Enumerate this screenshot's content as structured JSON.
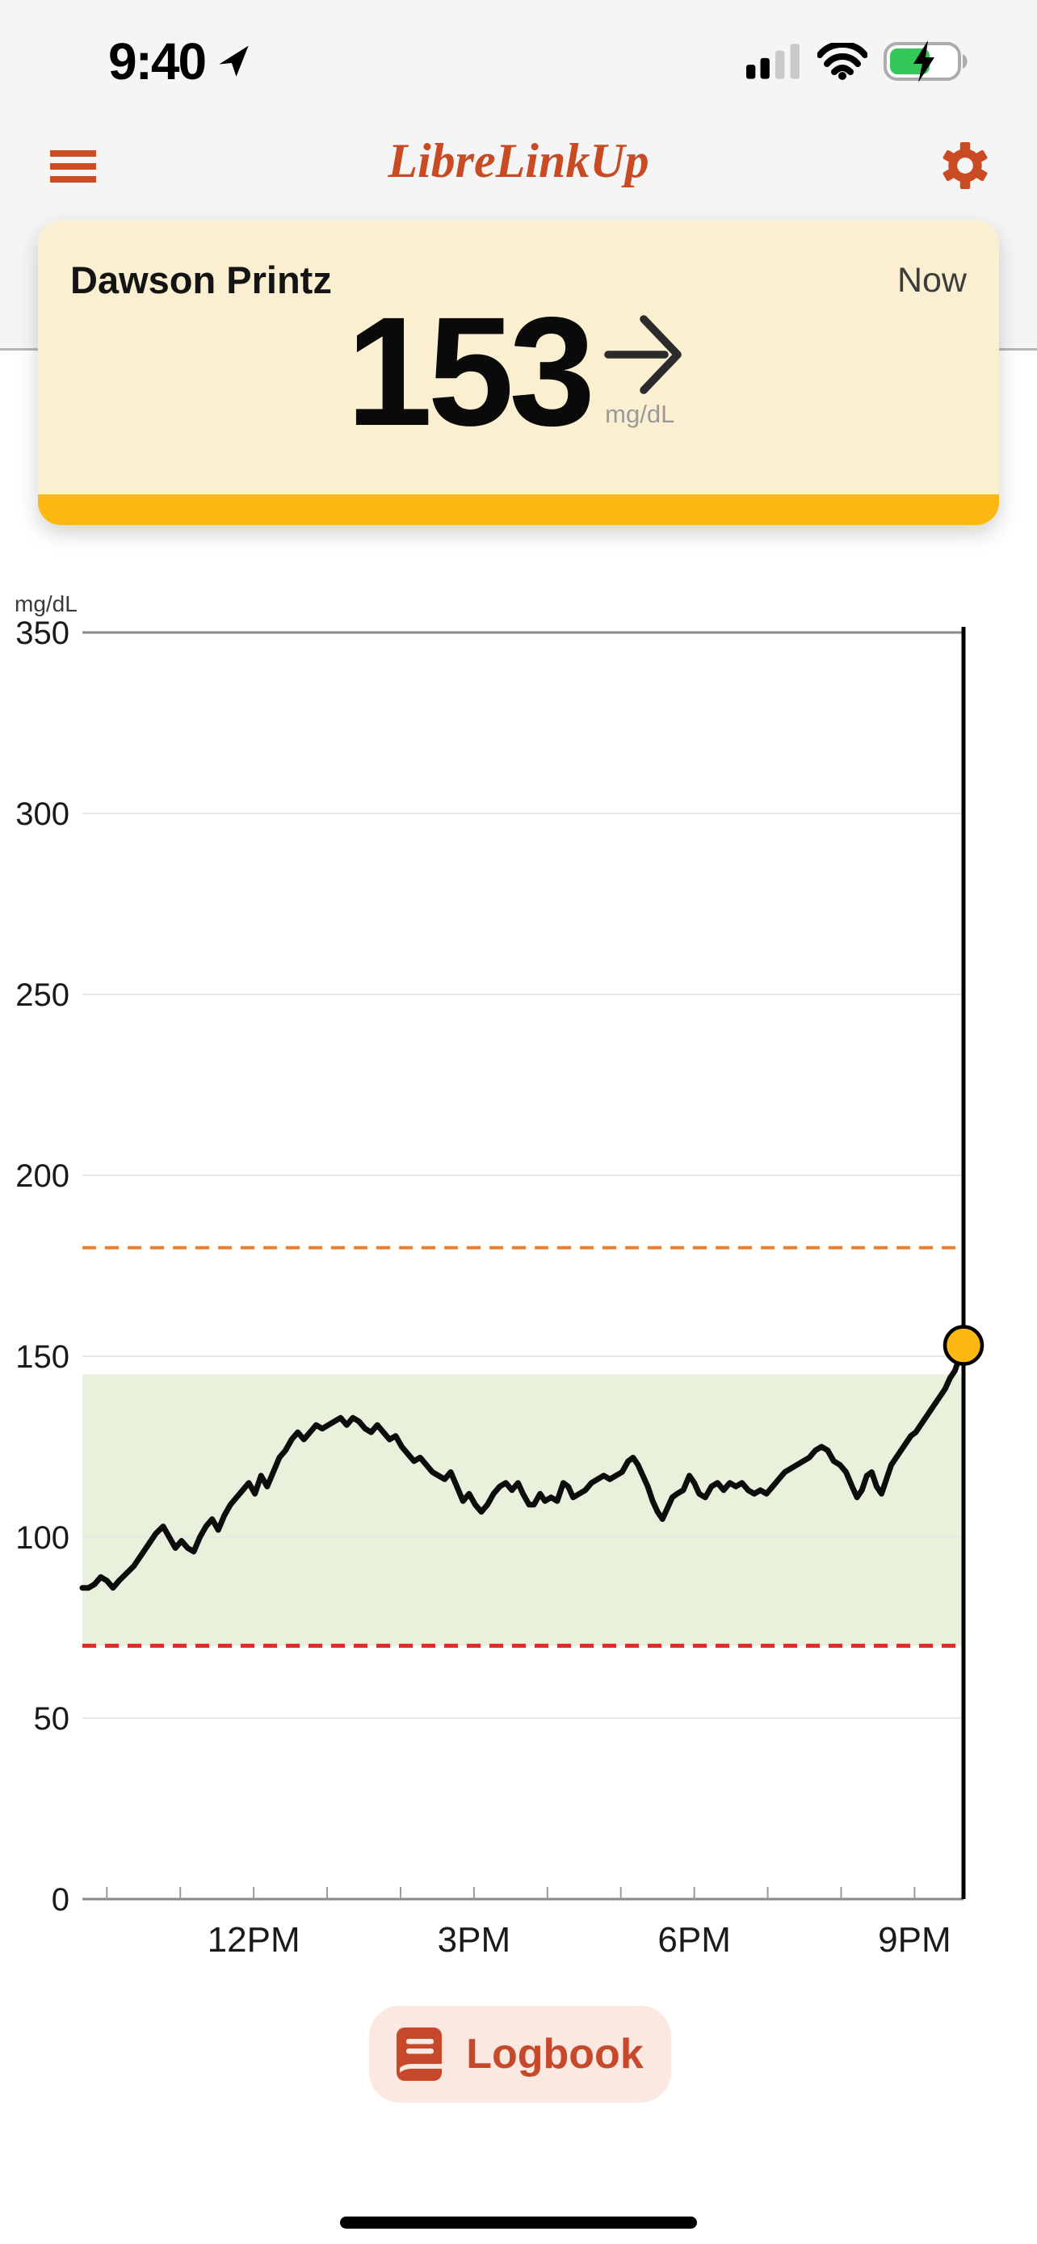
{
  "status_bar": {
    "time": "9:40",
    "location_icon": "location-arrow",
    "cellular": {
      "bars_active": 2,
      "bars_total": 4
    },
    "wifi": "full",
    "battery": {
      "level": 0.6,
      "charging": true,
      "green": "#34C759"
    }
  },
  "header": {
    "title": "LibreLinkUp",
    "menu_icon": "hamburger",
    "settings_icon": "gear",
    "accent": "#C94B24"
  },
  "patient_card": {
    "name": "Dawson Printz",
    "timestamp": "Now",
    "reading": "153",
    "unit": "mg/dL",
    "trend": "steady-right-arrow",
    "bg_color": "#FBEFD1",
    "bar_color": "#FDB813"
  },
  "logbook": {
    "label": "Logbook",
    "icon": "book"
  },
  "chart_data": {
    "type": "line",
    "ylabel": "mg/dL",
    "ylim": [
      0,
      350
    ],
    "y_ticks": [
      0,
      50,
      100,
      150,
      200,
      250,
      300,
      350
    ],
    "x_window": {
      "start": "9:40AM",
      "end": "9:40PM",
      "minutes": 720
    },
    "x_labels": [
      {
        "t": 140,
        "label": "12PM"
      },
      {
        "t": 320,
        "label": "3PM"
      },
      {
        "t": 500,
        "label": "6PM"
      },
      {
        "t": 680,
        "label": "9PM"
      }
    ],
    "x_first_tick_t": 20,
    "x_tick_interval_min": 60,
    "grid": "horizontal",
    "high_threshold": {
      "value": 180,
      "color": "#E87E2D",
      "style": "dashed"
    },
    "low_threshold": {
      "value": 70,
      "color": "#E0292B",
      "style": "dashed"
    },
    "target_range": {
      "low": 70,
      "high": 145,
      "fill": "#E8F1DB"
    },
    "current": {
      "t": 720,
      "value": 153,
      "marker_color": "#FDB813",
      "line_color": "#000000"
    },
    "line_color": "#0D0D0D",
    "series": [
      [
        0,
        86
      ],
      [
        5,
        86
      ],
      [
        10,
        87
      ],
      [
        15,
        89
      ],
      [
        20,
        88
      ],
      [
        25,
        86
      ],
      [
        30,
        88
      ],
      [
        36,
        90
      ],
      [
        42,
        92
      ],
      [
        48,
        95
      ],
      [
        54,
        98
      ],
      [
        60,
        101
      ],
      [
        66,
        103
      ],
      [
        71,
        100
      ],
      [
        76,
        97
      ],
      [
        81,
        99
      ],
      [
        86,
        97
      ],
      [
        91,
        96
      ],
      [
        96,
        100
      ],
      [
        101,
        103
      ],
      [
        106,
        105
      ],
      [
        111,
        102
      ],
      [
        116,
        106
      ],
      [
        121,
        109
      ],
      [
        126,
        111
      ],
      [
        131,
        113
      ],
      [
        136,
        115
      ],
      [
        141,
        112
      ],
      [
        146,
        117
      ],
      [
        151,
        114
      ],
      [
        156,
        118
      ],
      [
        161,
        122
      ],
      [
        166,
        124
      ],
      [
        171,
        127
      ],
      [
        176,
        129
      ],
      [
        181,
        127
      ],
      [
        186,
        129
      ],
      [
        191,
        131
      ],
      [
        196,
        130
      ],
      [
        201,
        131
      ],
      [
        206,
        132
      ],
      [
        211,
        133
      ],
      [
        216,
        131
      ],
      [
        221,
        133
      ],
      [
        226,
        132
      ],
      [
        231,
        130
      ],
      [
        236,
        129
      ],
      [
        241,
        131
      ],
      [
        246,
        129
      ],
      [
        251,
        127
      ],
      [
        256,
        128
      ],
      [
        261,
        125
      ],
      [
        266,
        123
      ],
      [
        271,
        121
      ],
      [
        276,
        122
      ],
      [
        281,
        120
      ],
      [
        286,
        118
      ],
      [
        291,
        117
      ],
      [
        296,
        116
      ],
      [
        301,
        118
      ],
      [
        306,
        114
      ],
      [
        311,
        110
      ],
      [
        316,
        112
      ],
      [
        321,
        109
      ],
      [
        326,
        107
      ],
      [
        331,
        109
      ],
      [
        336,
        112
      ],
      [
        341,
        114
      ],
      [
        346,
        115
      ],
      [
        351,
        113
      ],
      [
        356,
        115
      ],
      [
        360,
        112
      ],
      [
        365,
        109
      ],
      [
        369,
        109
      ],
      [
        374,
        112
      ],
      [
        378,
        110
      ],
      [
        383,
        111
      ],
      [
        388,
        110
      ],
      [
        393,
        115
      ],
      [
        397,
        114
      ],
      [
        401,
        111
      ],
      [
        406,
        112
      ],
      [
        411,
        113
      ],
      [
        416,
        115
      ],
      [
        421,
        116
      ],
      [
        426,
        117
      ],
      [
        431,
        116
      ],
      [
        436,
        117
      ],
      [
        441,
        118
      ],
      [
        446,
        121
      ],
      [
        450,
        122
      ],
      [
        454,
        120
      ],
      [
        458,
        117
      ],
      [
        462,
        114
      ],
      [
        466,
        110
      ],
      [
        470,
        107
      ],
      [
        474,
        105
      ],
      [
        478,
        108
      ],
      [
        482,
        111
      ],
      [
        486,
        112
      ],
      [
        491,
        113
      ],
      [
        496,
        117
      ],
      [
        500,
        115
      ],
      [
        504,
        112
      ],
      [
        509,
        111
      ],
      [
        514,
        114
      ],
      [
        519,
        115
      ],
      [
        524,
        113
      ],
      [
        529,
        115
      ],
      [
        534,
        114
      ],
      [
        539,
        115
      ],
      [
        544,
        113
      ],
      [
        549,
        112
      ],
      [
        554,
        113
      ],
      [
        559,
        112
      ],
      [
        564,
        114
      ],
      [
        569,
        116
      ],
      [
        574,
        118
      ],
      [
        579,
        119
      ],
      [
        584,
        120
      ],
      [
        589,
        121
      ],
      [
        594,
        122
      ],
      [
        599,
        124
      ],
      [
        604,
        125
      ],
      [
        609,
        124
      ],
      [
        614,
        121
      ],
      [
        619,
        120
      ],
      [
        624,
        118
      ],
      [
        629,
        114
      ],
      [
        633,
        111
      ],
      [
        637,
        113
      ],
      [
        641,
        117
      ],
      [
        645,
        118
      ],
      [
        649,
        114
      ],
      [
        653,
        112
      ],
      [
        657,
        116
      ],
      [
        661,
        120
      ],
      [
        665,
        122
      ],
      [
        669,
        124
      ],
      [
        673,
        126
      ],
      [
        677,
        128
      ],
      [
        681,
        129
      ],
      [
        685,
        131
      ],
      [
        689,
        133
      ],
      [
        693,
        135
      ],
      [
        697,
        137
      ],
      [
        701,
        139
      ],
      [
        705,
        141
      ],
      [
        709,
        144
      ],
      [
        713,
        146
      ],
      [
        716,
        149
      ],
      [
        718,
        151
      ],
      [
        720,
        153
      ]
    ]
  }
}
